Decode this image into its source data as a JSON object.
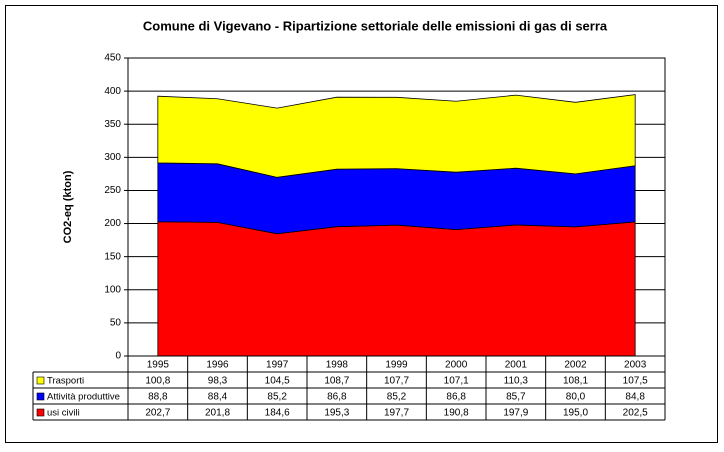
{
  "chart_data": {
    "type": "area",
    "title": "Comune di Vigevano - Ripartizione settoriale delle emissioni di gas di serra",
    "y_label": "CO2-eq (kton)",
    "categories": [
      "1995",
      "1996",
      "1997",
      "1998",
      "1999",
      "2000",
      "2001",
      "2002",
      "2003"
    ],
    "stacked": true,
    "grid": true,
    "ylim": [
      0,
      450
    ],
    "yticks": [
      0,
      50,
      100,
      150,
      200,
      250,
      300,
      350,
      400,
      450
    ],
    "series": [
      {
        "name": "Trasporti",
        "color": "#ffff00",
        "values": [
          100.8,
          98.3,
          104.5,
          108.7,
          107.7,
          107.1,
          110.3,
          108.1,
          107.5
        ],
        "value_labels": [
          "100,8",
          "98,3",
          "104,5",
          "108,7",
          "107,7",
          "107,1",
          "110,3",
          "108,1",
          "107,5"
        ]
      },
      {
        "name": "Attività produttive",
        "color": "#0000ff",
        "values": [
          88.8,
          88.4,
          85.2,
          86.8,
          85.2,
          86.8,
          85.7,
          80.0,
          84.8
        ],
        "value_labels": [
          "88,8",
          "88,4",
          "85,2",
          "86,8",
          "85,2",
          "86,8",
          "85,7",
          "80,0",
          "84,8"
        ]
      },
      {
        "name": "usi civili",
        "color": "#ff0000",
        "values": [
          202.7,
          201.8,
          184.6,
          195.3,
          197.7,
          190.8,
          197.9,
          195.0,
          202.5
        ],
        "value_labels": [
          "202,7",
          "201,8",
          "184,6",
          "195,3",
          "197,7",
          "190,8",
          "197,9",
          "195,0",
          "202,5"
        ]
      }
    ]
  }
}
